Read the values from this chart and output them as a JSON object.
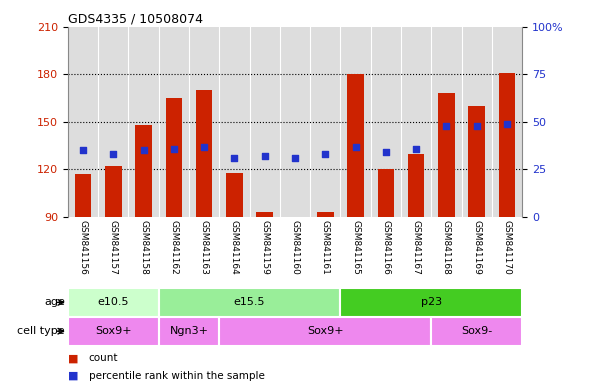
{
  "title": "GDS4335 / 10508074",
  "samples": [
    "GSM841156",
    "GSM841157",
    "GSM841158",
    "GSM841162",
    "GSM841163",
    "GSM841164",
    "GSM841159",
    "GSM841160",
    "GSM841161",
    "GSM841165",
    "GSM841166",
    "GSM841167",
    "GSM841168",
    "GSM841169",
    "GSM841170"
  ],
  "count_values": [
    117,
    122,
    148,
    165,
    170,
    118,
    93,
    89,
    93,
    180,
    120,
    130,
    168,
    160,
    181
  ],
  "percentile_values": [
    35,
    33,
    35,
    36,
    37,
    31,
    32,
    31,
    33,
    37,
    34,
    36,
    48,
    48,
    49
  ],
  "ylim_left": [
    90,
    210
  ],
  "ylim_right": [
    0,
    100
  ],
  "yticks_left": [
    90,
    120,
    150,
    180,
    210
  ],
  "yticks_right": [
    0,
    25,
    50,
    75,
    100
  ],
  "bar_color": "#cc2200",
  "dot_color": "#2233cc",
  "age_groups": [
    {
      "label": "e10.5",
      "start": 0,
      "end": 3,
      "color": "#ccffcc"
    },
    {
      "label": "e15.5",
      "start": 3,
      "end": 9,
      "color": "#99ee99"
    },
    {
      "label": "p23",
      "start": 9,
      "end": 15,
      "color": "#44cc22"
    }
  ],
  "cell_groups": [
    {
      "label": "Sox9+",
      "start": 0,
      "end": 3
    },
    {
      "label": "Ngn3+",
      "start": 3,
      "end": 5
    },
    {
      "label": "Sox9+",
      "start": 5,
      "end": 12
    },
    {
      "label": "Sox9-",
      "start": 12,
      "end": 15
    }
  ],
  "cell_color": "#ee88ee",
  "plot_bg": "#ffffff",
  "col_bg": "#dddddd",
  "grid_color": "#000000",
  "spine_color": "#888888",
  "label_left_color": "#cc2200",
  "label_right_color": "#2233cc"
}
